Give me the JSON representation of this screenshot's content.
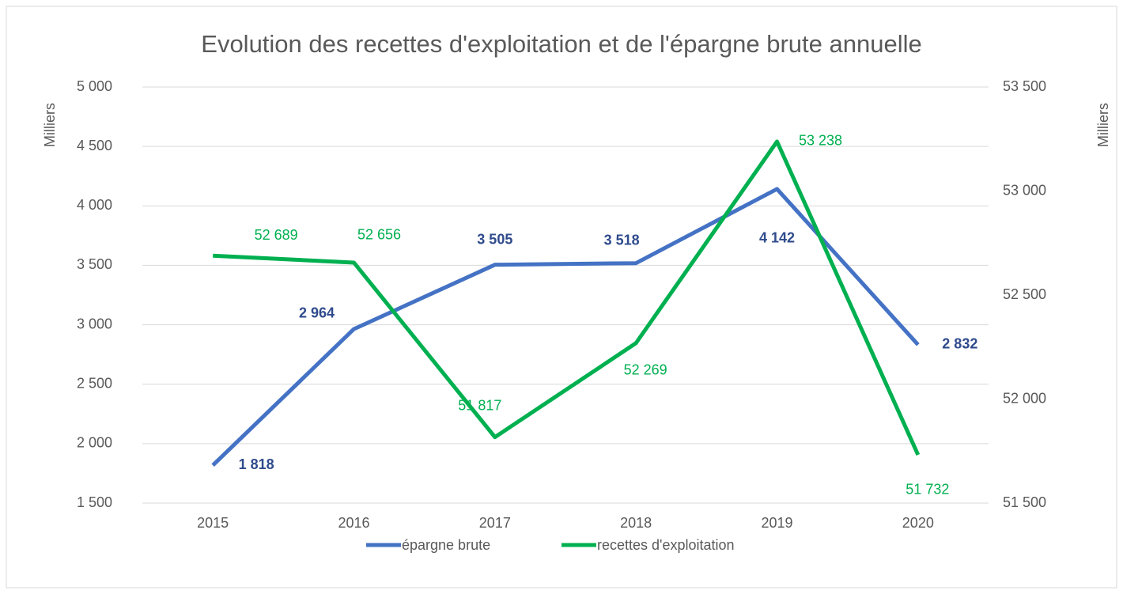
{
  "chart_data": {
    "type": "line",
    "title": "Evolution des recettes d'exploitation et de l'épargne brute annuelle",
    "y_label": "Milliers",
    "y2_label": "Milliers",
    "categories": [
      "2015",
      "2016",
      "2017",
      "2018",
      "2019",
      "2020"
    ],
    "series": [
      {
        "name": "épargne brute",
        "color": "#4472c4",
        "values": [
          1818,
          2964,
          3505,
          3518,
          4142,
          2832
        ],
        "value_labels": [
          "1 818",
          "2 964",
          "3 505",
          "3 518",
          "4 142",
          "2 832"
        ]
      },
      {
        "name": "recettes d'exploitation",
        "color": "#00b050",
        "axis": "y2",
        "values": [
          52689,
          52656,
          51817,
          52269,
          53238,
          51732
        ],
        "value_labels": [
          "52 689",
          "52 656",
          "51 817",
          "52 269",
          "53 238",
          "51 732"
        ]
      }
    ],
    "ylim": [
      1500,
      5000
    ],
    "yticks": [
      {
        "value": 1500,
        "label": "1 500"
      },
      {
        "value": 2000,
        "label": "2 000"
      },
      {
        "value": 2500,
        "label": "2 500"
      },
      {
        "value": 3000,
        "label": "3 000"
      },
      {
        "value": 3500,
        "label": "3 500"
      },
      {
        "value": 4000,
        "label": "4 000"
      },
      {
        "value": 4500,
        "label": "4 500"
      },
      {
        "value": 5000,
        "label": "5 000"
      }
    ],
    "y2lim": [
      51500,
      53500
    ],
    "y2ticks": [
      {
        "value": 51500,
        "label": "51 500"
      },
      {
        "value": 52000,
        "label": "52 000"
      },
      {
        "value": 52500,
        "label": "52 500"
      },
      {
        "value": 53000,
        "label": "53 000"
      },
      {
        "value": 53500,
        "label": "53 500"
      }
    ],
    "grid": true,
    "legend": "bottom"
  }
}
